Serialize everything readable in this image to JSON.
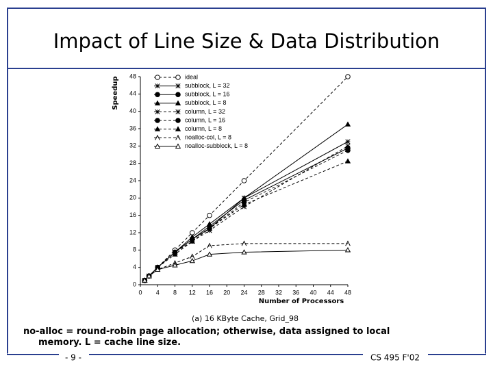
{
  "slide_title": "Impact of Line Size & Data Distribution",
  "footnote": [
    "no-alloc = round-robin page allocation; otherwise, data assigned to local",
    "memory. L = cache line size."
  ],
  "page_number": "- 9 -",
  "course": "CS 495 F'02",
  "chart_data": {
    "type": "line",
    "caption": "(a) 16 KByte Cache, Grid_98",
    "x_label": "Number of Processors",
    "y_label": "Speedup",
    "x": [
      1,
      2,
      4,
      8,
      12,
      16,
      24,
      48
    ],
    "xlim": [
      0,
      48
    ],
    "xticks": [
      0,
      4,
      8,
      12,
      16,
      20,
      24,
      28,
      32,
      36,
      40,
      44,
      48
    ],
    "ylim": [
      0,
      48
    ],
    "yticks": [
      0,
      4,
      8,
      12,
      16,
      20,
      24,
      28,
      32,
      36,
      40,
      44,
      48
    ],
    "series": [
      {
        "name": "ideal",
        "color": "#000000",
        "dashed": true,
        "marker": "circle-open",
        "values": [
          1,
          2,
          4,
          8,
          12,
          16,
          24,
          48
        ]
      },
      {
        "name": "subblock, L = 32",
        "color": "#000000",
        "dashed": false,
        "marker": "star",
        "values": [
          1,
          2,
          4,
          7.5,
          10.5,
          13,
          20,
          33
        ]
      },
      {
        "name": "subblock, L = 16",
        "color": "#000000",
        "dashed": false,
        "marker": "circle",
        "values": [
          1,
          2,
          4,
          7.5,
          10.5,
          13.5,
          19.5,
          31.5
        ]
      },
      {
        "name": "subblock, L = 8",
        "color": "#000000",
        "dashed": false,
        "marker": "triangle",
        "values": [
          1,
          2,
          4,
          7.5,
          11,
          14,
          20,
          37
        ]
      },
      {
        "name": "column, L = 32",
        "color": "#000000",
        "dashed": true,
        "marker": "star",
        "values": [
          1,
          2,
          4,
          7.5,
          10,
          12.5,
          18,
          32
        ]
      },
      {
        "name": "column, L = 16",
        "color": "#000000",
        "dashed": true,
        "marker": "circle",
        "values": [
          1,
          2,
          4,
          7.5,
          10.5,
          13,
          19,
          31
        ]
      },
      {
        "name": "column, L = 8",
        "color": "#000000",
        "dashed": true,
        "marker": "triangle",
        "values": [
          1,
          2,
          4,
          7,
          10,
          13,
          18.5,
          28.5
        ]
      },
      {
        "name": "noalloc-col, L = 8",
        "color": "#000000",
        "dashed": true,
        "marker": "chevron",
        "values": [
          1,
          2,
          3.5,
          5,
          6.5,
          9,
          9.5,
          9.5
        ]
      },
      {
        "name": "noalloc-subblock, L = 8",
        "color": "#000000",
        "dashed": false,
        "marker": "triangle-open",
        "values": [
          1,
          2,
          3.5,
          4.5,
          5.5,
          7,
          7.5,
          8
        ]
      }
    ]
  }
}
